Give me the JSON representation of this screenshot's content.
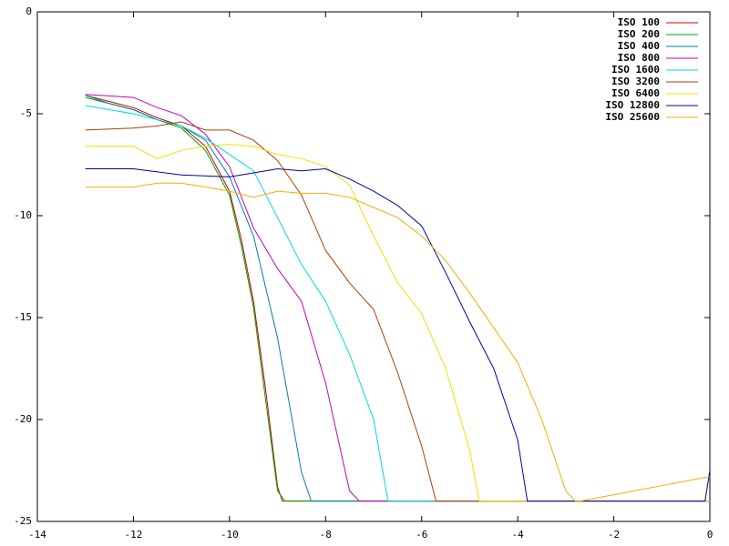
{
  "chart_data": {
    "type": "line",
    "xlim": [
      -14,
      0
    ],
    "xticks": [
      -14,
      -12,
      -10,
      -8,
      -6,
      -4,
      -2,
      0
    ],
    "ylim": [
      -25,
      0
    ],
    "yticks": [
      -25,
      -20,
      -15,
      -10,
      -5,
      0
    ],
    "legend": "top-right",
    "series": [
      {
        "name": "ISO 100",
        "color": "#cc0000",
        "x": [
          -13,
          -12.5,
          -12,
          -11.5,
          -11,
          -10.5,
          -10,
          -9.75,
          -9.5,
          -9.25,
          -9,
          -8.9,
          0
        ],
        "values": [
          -4.1,
          -4.4,
          -4.7,
          -5.2,
          -5.6,
          -6.6,
          -8.8,
          -11.2,
          -14.2,
          -18.5,
          -23.3,
          -24,
          -24
        ]
      },
      {
        "name": "ISO 200",
        "color": "#00a000",
        "x": [
          -13,
          -12.5,
          -12,
          -11.5,
          -11,
          -10.5,
          -10,
          -9.75,
          -9.5,
          -9.25,
          -9,
          -8.85,
          0
        ],
        "values": [
          -4.1,
          -4.5,
          -4.8,
          -5.3,
          -5.7,
          -6.8,
          -9.0,
          -11.5,
          -14.5,
          -19.0,
          -23.5,
          -24,
          -24
        ]
      },
      {
        "name": "ISO 400",
        "color": "#0080a0",
        "x": [
          -13,
          -12,
          -11.5,
          -11,
          -10.5,
          -10,
          -9.5,
          -9,
          -8.5,
          -8.3,
          0
        ],
        "values": [
          -4.2,
          -4.8,
          -5.3,
          -5.6,
          -6.3,
          -8.1,
          -11.0,
          -16.0,
          -22.6,
          -24,
          -24
        ]
      },
      {
        "name": "ISO 800",
        "color": "#c000c0",
        "x": [
          -13,
          -12,
          -11.5,
          -11,
          -10.5,
          -10,
          -9.5,
          -9,
          -8.5,
          -8,
          -7.5,
          -7.3,
          0
        ],
        "values": [
          -4.05,
          -4.2,
          -4.7,
          -5.1,
          -6.0,
          -7.6,
          -10.6,
          -12.6,
          -14.2,
          -18.2,
          -23.5,
          -24,
          -24
        ]
      },
      {
        "name": "ISO 1600",
        "color": "#00d8d8",
        "x": [
          -13,
          -12,
          -11.5,
          -11,
          -10.5,
          -10,
          -9.5,
          -9,
          -8.5,
          -8,
          -7.5,
          -7,
          -6.7,
          0
        ],
        "values": [
          -4.6,
          -5.0,
          -5.3,
          -5.6,
          -6.2,
          -7.0,
          -7.8,
          -10.1,
          -12.4,
          -14.2,
          -16.8,
          -20.0,
          -24,
          -24
        ]
      },
      {
        "name": "ISO 3200",
        "color": "#b04000",
        "x": [
          -13,
          -12,
          -11.5,
          -11,
          -10.5,
          -10,
          -9.5,
          -9,
          -8.5,
          -8,
          -7.5,
          -7,
          -6.5,
          -6,
          -5.7,
          0
        ],
        "values": [
          -5.8,
          -5.7,
          -5.6,
          -5.4,
          -5.8,
          -5.8,
          -6.3,
          -7.3,
          -9.0,
          -11.7,
          -13.3,
          -14.6,
          -17.7,
          -21.3,
          -24,
          -24
        ]
      },
      {
        "name": "ISO 6400",
        "color": "#f0e000",
        "x": [
          -13,
          -12,
          -11.5,
          -11,
          -10.5,
          -10,
          -9.5,
          -9,
          -8.5,
          -8,
          -7.5,
          -7,
          -6.5,
          -6,
          -5.5,
          -5,
          -4.8,
          0
        ],
        "values": [
          -6.6,
          -6.6,
          -7.2,
          -6.8,
          -6.6,
          -6.5,
          -6.6,
          -7.0,
          -7.2,
          -7.6,
          -8.5,
          -11.0,
          -13.3,
          -14.8,
          -17.5,
          -21.5,
          -24,
          -24
        ]
      },
      {
        "name": "ISO 12800",
        "color": "#0000a0",
        "x": [
          -13,
          -12,
          -11,
          -10,
          -9.5,
          -9,
          -8.5,
          -8,
          -7.5,
          -7,
          -6.5,
          -6,
          -5.5,
          -5,
          -4.5,
          -4,
          -3.8,
          -0.1,
          0
        ],
        "values": [
          -7.7,
          -7.7,
          -8.0,
          -8.1,
          -7.9,
          -7.7,
          -7.8,
          -7.7,
          -8.2,
          -8.8,
          -9.5,
          -10.5,
          -12.8,
          -15.2,
          -17.5,
          -21.0,
          -24,
          -24,
          -22.5
        ]
      },
      {
        "name": "ISO 25600",
        "color": "#f0b000",
        "x": [
          -13,
          -12,
          -11.5,
          -11,
          -10.5,
          -10,
          -9.5,
          -9,
          -8.5,
          -8,
          -7.5,
          -7,
          -6.5,
          -6,
          -5.5,
          -5,
          -4.5,
          -4,
          -3.5,
          -3,
          -2.8,
          -2.7,
          0
        ],
        "values": [
          -8.6,
          -8.6,
          -8.4,
          -8.4,
          -8.6,
          -8.8,
          -9.1,
          -8.8,
          -8.9,
          -8.9,
          -9.1,
          -9.6,
          -10.1,
          -11.0,
          -12.2,
          -13.8,
          -15.5,
          -17.2,
          -20.0,
          -23.5,
          -24,
          -24,
          -22.8
        ]
      }
    ]
  }
}
